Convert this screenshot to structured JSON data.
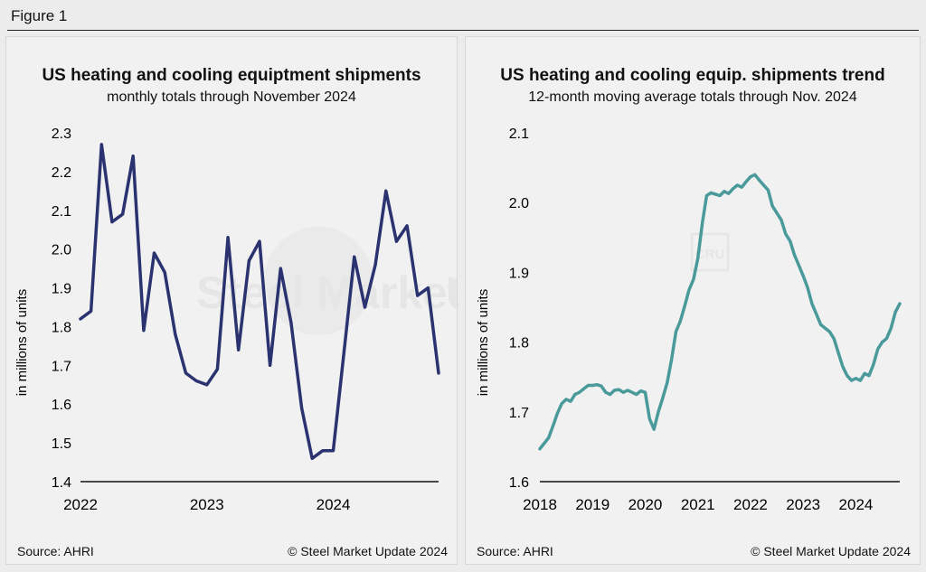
{
  "figure_label": "Figure 1",
  "watermark": {
    "text_bold": "Steel Market",
    "text_light": "Update",
    "badge": "CRU"
  },
  "chart_data": [
    {
      "type": "line",
      "title": "US heating and cooling equiptment shipments",
      "subtitle": "monthly totals through November 2024",
      "ylabel": "in millions of units",
      "xlabel": "",
      "ylim": [
        1.4,
        2.3
      ],
      "yticks": [
        "1.4",
        "1.5",
        "1.6",
        "1.7",
        "1.8",
        "1.9",
        "2.0",
        "2.1",
        "2.2",
        "2.3"
      ],
      "xticks": [
        {
          "label": "2022",
          "x": 0
        },
        {
          "label": "2023",
          "x": 12
        },
        {
          "label": "2024",
          "x": 24
        }
      ],
      "xlim": [
        0,
        34
      ],
      "color": "#2b3270",
      "grid": false,
      "source": "Source: AHRI",
      "credit": "© Steel Market Update 2024",
      "series": [
        {
          "x": [
            0,
            1,
            2,
            3,
            4,
            5,
            6,
            7,
            8,
            9,
            10,
            11,
            12,
            13,
            14,
            15,
            16,
            17,
            18,
            19,
            20,
            21,
            22,
            23,
            24,
            25,
            26,
            27,
            28,
            29,
            30,
            31,
            32,
            33,
            34
          ],
          "values": [
            1.82,
            1.84,
            2.27,
            2.07,
            2.09,
            2.24,
            1.79,
            1.99,
            1.94,
            1.78,
            1.68,
            1.66,
            1.65,
            1.69,
            2.03,
            1.74,
            1.97,
            2.02,
            1.7,
            1.95,
            1.81,
            1.59,
            1.46,
            1.48,
            1.48,
            1.73,
            1.98,
            1.85,
            1.96,
            2.15,
            2.02,
            2.06,
            1.88,
            1.9,
            1.68
          ]
        }
      ]
    },
    {
      "type": "line",
      "title": "US heating and cooling equip. shipments trend",
      "subtitle": "12-month moving average totals through Nov. 2024",
      "ylabel": "in millions of units",
      "xlabel": "",
      "ylim": [
        1.6,
        2.1
      ],
      "yticks": [
        "1.6",
        "1.7",
        "1.8",
        "1.9",
        "2.0",
        "2.1"
      ],
      "xticks": [
        {
          "label": "2018",
          "x": 0
        },
        {
          "label": "2019",
          "x": 12
        },
        {
          "label": "2020",
          "x": 24
        },
        {
          "label": "2021",
          "x": 36
        },
        {
          "label": "2022",
          "x": 48
        },
        {
          "label": "2023",
          "x": 60
        },
        {
          "label": "2024",
          "x": 72
        }
      ],
      "xlim": [
        0,
        82
      ],
      "color": "#4a9a9c",
      "grid": false,
      "source": "Source: AHRI",
      "credit": "© Steel Market Update 2024",
      "series": [
        {
          "x": [
            0,
            1,
            2,
            3,
            4,
            5,
            6,
            7,
            8,
            9,
            10,
            11,
            12,
            13,
            14,
            15,
            16,
            17,
            18,
            19,
            20,
            21,
            22,
            23,
            24,
            25,
            26,
            27,
            28,
            29,
            30,
            31,
            32,
            33,
            34,
            35,
            36,
            37,
            38,
            39,
            40,
            41,
            42,
            43,
            44,
            45,
            46,
            47,
            48,
            49,
            50,
            51,
            52,
            53,
            54,
            55,
            56,
            57,
            58,
            59,
            60,
            61,
            62,
            63,
            64,
            65,
            66,
            67,
            68,
            69,
            70,
            71,
            72,
            73,
            74,
            75,
            76,
            77,
            78,
            79,
            80,
            81,
            82
          ],
          "values": [
            1.647,
            1.655,
            1.663,
            1.68,
            1.698,
            1.712,
            1.718,
            1.715,
            1.725,
            1.728,
            1.733,
            1.738,
            1.738,
            1.739,
            1.737,
            1.728,
            1.725,
            1.731,
            1.732,
            1.728,
            1.731,
            1.728,
            1.725,
            1.73,
            1.728,
            1.69,
            1.675,
            1.7,
            1.72,
            1.742,
            1.775,
            1.815,
            1.83,
            1.852,
            1.875,
            1.89,
            1.92,
            1.97,
            2.01,
            2.014,
            2.012,
            2.01,
            2.016,
            2.013,
            2.02,
            2.025,
            2.022,
            2.03,
            2.037,
            2.04,
            2.032,
            2.025,
            2.018,
            1.995,
            1.985,
            1.975,
            1.955,
            1.945,
            1.925,
            1.91,
            1.895,
            1.878,
            1.855,
            1.84,
            1.825,
            1.82,
            1.815,
            1.805,
            1.785,
            1.765,
            1.752,
            1.745,
            1.748,
            1.745,
            1.755,
            1.752,
            1.768,
            1.79,
            1.8,
            1.805,
            1.82,
            1.843,
            1.855
          ]
        }
      ]
    }
  ]
}
